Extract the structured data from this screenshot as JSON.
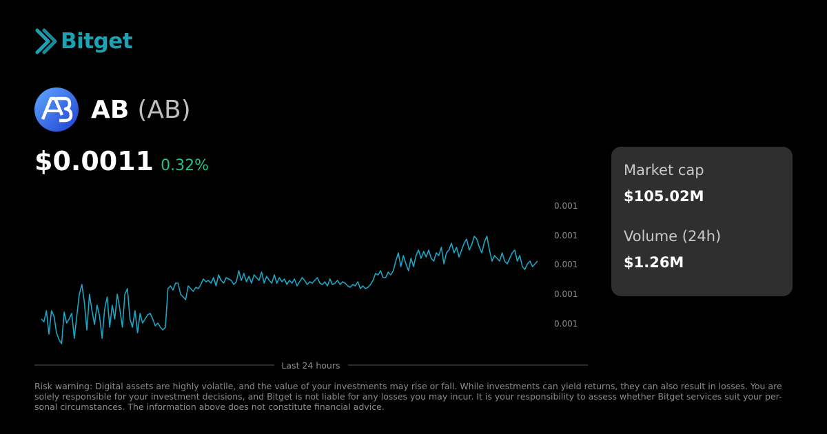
{
  "brand": {
    "name": "Bitget",
    "color": "#1da2b4",
    "icon": "bitget-logo-icon"
  },
  "coin": {
    "name": "AB",
    "symbol": "(AB)",
    "icon": "ab-coin-icon",
    "icon_colors": [
      "#1e3fd1",
      "#5fa8ff"
    ]
  },
  "price": {
    "value": "$0.0011",
    "change": "0.32%",
    "change_color": "#22c08a"
  },
  "stats": {
    "market_cap_label": "Market cap",
    "market_cap_value": "$105.02M",
    "volume_label": "Volume (24h)",
    "volume_value": "$1.26M"
  },
  "chart_data": {
    "type": "line",
    "line_color": "#1ba6c4",
    "xlabel": "Last 24 hours",
    "y_ticks": [
      "0.001",
      "0.001",
      "0.001",
      "0.001",
      "0.001"
    ],
    "grid": false,
    "values": [
      0.2,
      0.18,
      0.26,
      0.09,
      0.26,
      0.22,
      0.1,
      0.05,
      0.02,
      0.25,
      0.17,
      0.2,
      0.24,
      0.06,
      0.22,
      0.38,
      0.45,
      0.32,
      0.12,
      0.38,
      0.26,
      0.16,
      0.3,
      0.22,
      0.06,
      0.27,
      0.36,
      0.14,
      0.3,
      0.2,
      0.38,
      0.27,
      0.14,
      0.38,
      0.42,
      0.2,
      0.14,
      0.26,
      0.1,
      0.24,
      0.17,
      0.2,
      0.23,
      0.24,
      0.2,
      0.15,
      0.17,
      0.14,
      0.12,
      0.14,
      0.42,
      0.44,
      0.41,
      0.46,
      0.46,
      0.38,
      0.36,
      0.34,
      0.44,
      0.42,
      0.4,
      0.43,
      0.42,
      0.45,
      0.49,
      0.47,
      0.48,
      0.46,
      0.5,
      0.44,
      0.52,
      0.48,
      0.46,
      0.5,
      0.49,
      0.48,
      0.45,
      0.47,
      0.55,
      0.48,
      0.53,
      0.47,
      0.51,
      0.46,
      0.52,
      0.5,
      0.48,
      0.54,
      0.46,
      0.51,
      0.48,
      0.46,
      0.52,
      0.46,
      0.5,
      0.47,
      0.49,
      0.45,
      0.48,
      0.46,
      0.49,
      0.44,
      0.47,
      0.5,
      0.48,
      0.45,
      0.47,
      0.46,
      0.48,
      0.5,
      0.46,
      0.45,
      0.47,
      0.44,
      0.49,
      0.45,
      0.46,
      0.48,
      0.45,
      0.47,
      0.46,
      0.44,
      0.43,
      0.45,
      0.44,
      0.47,
      0.42,
      0.44,
      0.42,
      0.43,
      0.45,
      0.48,
      0.53,
      0.52,
      0.55,
      0.5,
      0.5,
      0.54,
      0.52,
      0.55,
      0.62,
      0.68,
      0.58,
      0.66,
      0.6,
      0.55,
      0.64,
      0.58,
      0.66,
      0.7,
      0.64,
      0.69,
      0.65,
      0.7,
      0.64,
      0.62,
      0.68,
      0.66,
      0.72,
      0.6,
      0.68,
      0.7,
      0.75,
      0.68,
      0.72,
      0.65,
      0.7,
      0.75,
      0.78,
      0.7,
      0.74,
      0.8,
      0.78,
      0.72,
      0.68,
      0.76,
      0.8,
      0.7,
      0.62,
      0.66,
      0.64,
      0.62,
      0.68,
      0.62,
      0.6,
      0.64,
      0.68,
      0.7,
      0.62,
      0.66,
      0.58,
      0.56,
      0.6,
      0.62,
      0.58,
      0.6,
      0.62
    ]
  },
  "disclaimer": "Risk warning: Digital assets are highly volatile, and the value of your investments may rise or fall. While investments can yield returns, they can also result in losses. You are solely responsible for your investment decisions, and Bitget is not liable for any losses you may incur. It is your responsibility to assess whether Bitget services suit your per-sonal circumstances. The information above does not constitute financial advice."
}
